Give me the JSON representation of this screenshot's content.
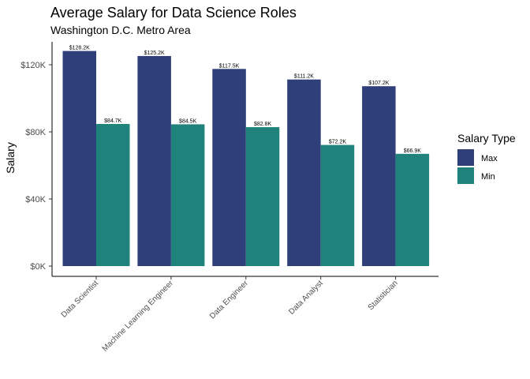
{
  "chart_data": {
    "type": "bar",
    "title": "Average Salary for Data Science Roles",
    "subtitle": "Washington D.C. Metro Area",
    "xlabel": "",
    "ylabel": "Salary",
    "ylim": [
      0,
      134000
    ],
    "yticks": [
      0,
      40000,
      80000,
      120000
    ],
    "ytick_labels": [
      "$0K",
      "$40K",
      "$80K",
      "$120K"
    ],
    "categories": [
      "Data Scientist",
      "Machine Learning Engineer",
      "Data Engineer",
      "Data Analyst",
      "Statistician"
    ],
    "series": [
      {
        "name": "Max",
        "color": "#2e3f7a",
        "values": [
          128200,
          125200,
          117500,
          111200,
          107200
        ],
        "labels": [
          "$128.2K",
          "$125.2K",
          "$117.5K",
          "$111.2K",
          "$107.2K"
        ]
      },
      {
        "name": "Min",
        "color": "#20837b",
        "values": [
          84700,
          84500,
          82800,
          72200,
          66900
        ],
        "labels": [
          "$84.7K",
          "$84.5K",
          "$82.8K",
          "$72.2K",
          "$66.9K"
        ]
      }
    ],
    "grid": false,
    "legend": {
      "title": "Salary Type",
      "position": "right"
    }
  }
}
